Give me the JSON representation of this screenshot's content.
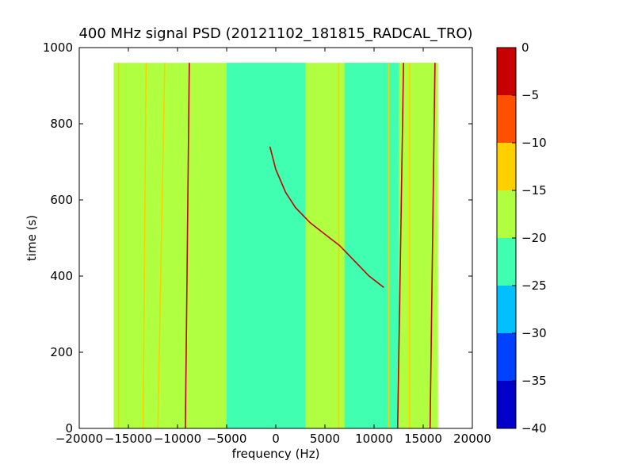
{
  "chart_data": {
    "type": "heatmap",
    "title": "400 MHz signal PSD (20121102_181815_RADCAL_TRO)",
    "xlabel": "frequency (Hz)",
    "ylabel": "time (s)",
    "xlim": [
      -20000,
      20000
    ],
    "ylim": [
      0,
      1000
    ],
    "x_ticks": [
      -20000,
      -15000,
      -10000,
      -5000,
      0,
      5000,
      10000,
      15000,
      20000
    ],
    "x_tick_labels": [
      "−20000",
      "−15000",
      "−10000",
      "−5000",
      "0",
      "5000",
      "10000",
      "15000",
      "20000"
    ],
    "y_ticks": [
      0,
      200,
      400,
      600,
      800,
      1000
    ],
    "y_tick_labels": [
      "0",
      "200",
      "400",
      "600",
      "800",
      "1000"
    ],
    "data_extent": {
      "x": [
        -16500,
        16500
      ],
      "y": [
        0,
        960
      ]
    },
    "colorbar": {
      "levels": [
        -40,
        -35,
        -30,
        -25,
        -20,
        -15,
        -10,
        -5,
        0
      ],
      "tick_labels": [
        "−40",
        "−35",
        "−30",
        "−25",
        "−20",
        "−15",
        "−10",
        "−5",
        "0"
      ],
      "colors": [
        "#0000c8",
        "#0040ff",
        "#00c0ff",
        "#40ffb0",
        "#b0ff40",
        "#ffd000",
        "#ff5000",
        "#c80000"
      ]
    },
    "regions": [
      {
        "x": [
          -16500,
          16500
        ],
        "y": [
          0,
          960
        ],
        "level": "-20 to -15"
      },
      {
        "x": [
          -5000,
          3000
        ],
        "y": [
          0,
          960
        ],
        "level": "-25 to -20"
      },
      {
        "x": [
          7000,
          12500
        ],
        "y": [
          0,
          960
        ],
        "level": "-25 to -20"
      },
      {
        "x": [
          12500,
          16500
        ],
        "y": [
          0,
          960
        ],
        "level": "-20 to -15"
      }
    ],
    "vertical_lines": [
      {
        "x": [
          -16000,
          -16000
        ],
        "y": [
          0,
          960
        ],
        "level": "-15 to -10"
      },
      {
        "x": [
          -13500,
          -13200
        ],
        "y": [
          0,
          960
        ],
        "level": "-15 to -10"
      },
      {
        "x": [
          -12000,
          -11300
        ],
        "y": [
          0,
          960
        ],
        "level": "-15 to -10"
      },
      {
        "x": [
          -9200,
          -8800
        ],
        "y": [
          0,
          960
        ],
        "level": "-5 to 0"
      },
      {
        "x": [
          6400,
          6400
        ],
        "y": [
          0,
          960
        ],
        "level": "-15 to -10"
      },
      {
        "x": [
          11500,
          11500
        ],
        "y": [
          0,
          960
        ],
        "level": "-15 to -10"
      },
      {
        "x": [
          12400,
          13000
        ],
        "y": [
          0,
          960
        ],
        "level": "-5 to 0"
      },
      {
        "x": [
          13600,
          13600
        ],
        "y": [
          0,
          960
        ],
        "level": "-15 to -10"
      },
      {
        "x": [
          15700,
          16200
        ],
        "y": [
          0,
          960
        ],
        "level": "-5 to 0"
      }
    ],
    "curves": [
      {
        "points": [
          [
            -600,
            740
          ],
          [
            0,
            680
          ],
          [
            1000,
            620
          ],
          [
            2000,
            580
          ],
          [
            3500,
            540
          ],
          [
            5000,
            510
          ],
          [
            6500,
            480
          ],
          [
            8000,
            440
          ],
          [
            9500,
            400
          ],
          [
            11000,
            370
          ]
        ],
        "level": "-5 to 0"
      }
    ]
  }
}
